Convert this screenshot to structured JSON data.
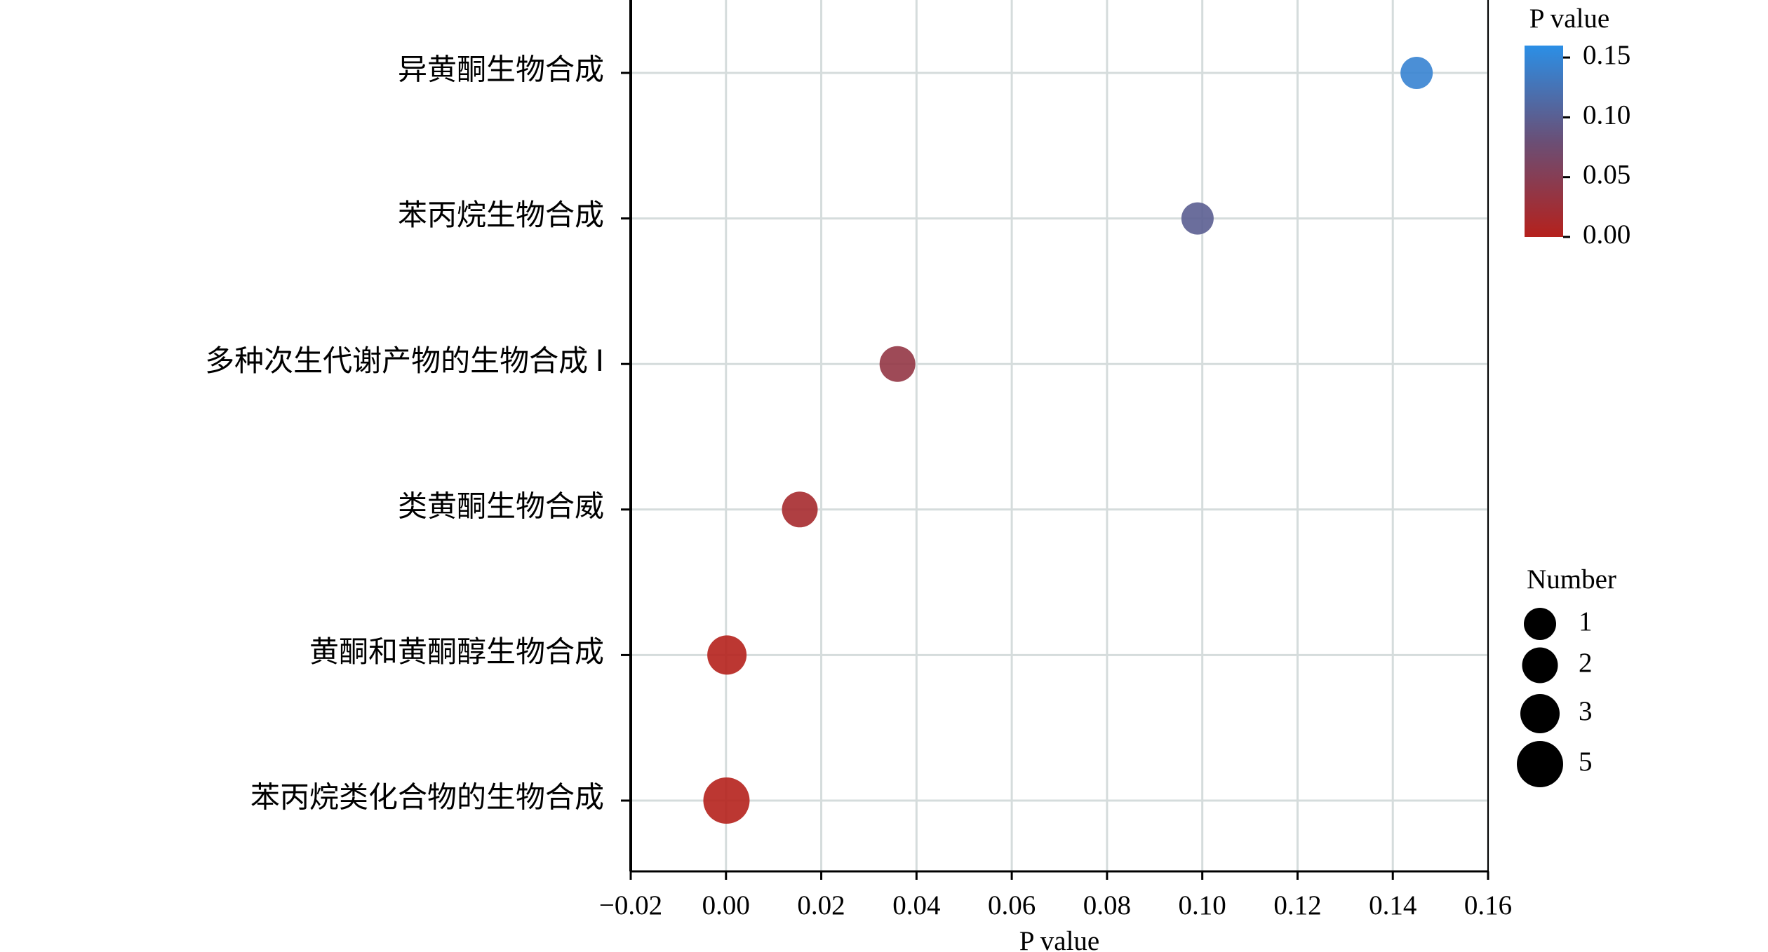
{
  "chart_data": {
    "type": "bubble",
    "x_label": "P value",
    "categories": [
      "异黄酮生物合成",
      "苯丙烷生物合成",
      "多种次生代谢产物的生物合成 Ⅰ",
      "类黄酮生物合威",
      "黄酮和黄酮醇生物合成",
      "苯丙烷类化合物的生物合成"
    ],
    "values": [
      0.145,
      0.099,
      0.036,
      0.0155,
      0.0002,
      0.0001
    ],
    "sizes": [
      1,
      1,
      2,
      2,
      3,
      5
    ],
    "xlim": [
      -0.02,
      0.16
    ],
    "xticks": [
      {
        "value": -0.02,
        "label": "−0.02"
      },
      {
        "value": 0,
        "label": "0.00"
      },
      0.02,
      0.04,
      0.06,
      0.08,
      {
        "value": 0.1,
        "label": "0.10"
      },
      0.12,
      0.14,
      0.16
    ],
    "grid": true,
    "colorbar": {
      "title": "P value",
      "lim": [
        0,
        0.16
      ],
      "colors": [
        "#b5211c",
        "#6a4f76",
        "#2b8fe6"
      ],
      "ticks": [
        {
          "value": 0,
          "label": "0.00"
        },
        {
          "value": 0.05,
          "label": "0.05"
        },
        {
          "value": 0.1,
          "label": "0.10"
        },
        {
          "value": 0.15,
          "label": "0.15"
        }
      ]
    },
    "size_legend": {
      "title": "Number",
      "values": [
        1,
        2,
        3,
        5
      ]
    }
  }
}
